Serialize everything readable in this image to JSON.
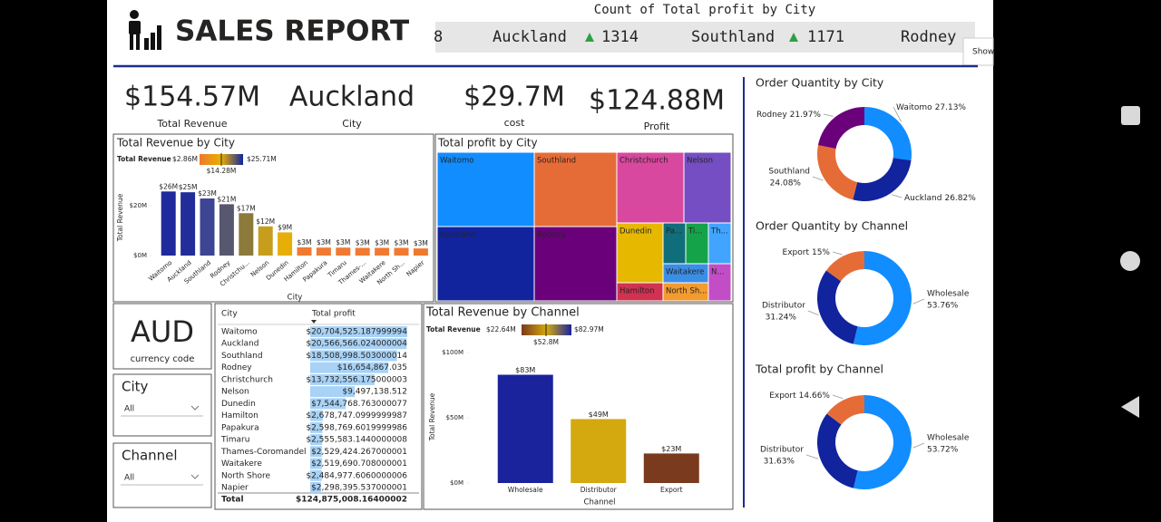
{
  "header": {
    "title": "SALES REPORT",
    "ticker_title": "Count of Total profit by City",
    "ticker_lead": "8",
    "ticker": [
      {
        "city": "Auckland",
        "count": 1314
      },
      {
        "city": "Southland",
        "count": 1171
      },
      {
        "city": "Rodney"
      }
    ],
    "show_button": "Show"
  },
  "kpis": [
    {
      "value": "$154.57M",
      "label": "Total Revenue"
    },
    {
      "value": "Auckland",
      "label": "City"
    },
    {
      "value": "$29.7M",
      "label": "cost"
    },
    {
      "value": "$124.88M",
      "label": "Profit"
    }
  ],
  "slicers": {
    "currency": {
      "value": "AUD",
      "label": "currency code"
    },
    "city": {
      "label": "City",
      "selection": "All"
    },
    "channel": {
      "label": "Channel",
      "selection": "All"
    }
  },
  "table": {
    "columns": [
      "City",
      "Total profit"
    ],
    "rows": [
      [
        "Waitomo",
        "$20,704,525.187999994"
      ],
      [
        "Auckland",
        "$20,566,566.024000004"
      ],
      [
        "Southland",
        "$18,508,998.503000014"
      ],
      [
        "Rodney",
        "$16,654,867.035"
      ],
      [
        "Christchurch",
        "$13,732,556.175000003"
      ],
      [
        "Nelson",
        "$9,497,138.512"
      ],
      [
        "Dunedin",
        "$7,544,768.763000077"
      ],
      [
        "Hamilton",
        "$2,678,747.0999999987"
      ],
      [
        "Papakura",
        "$2,598,769.6019999986"
      ],
      [
        "Timaru",
        "$2,555,583.1440000008"
      ],
      [
        "Thames-Coromandel",
        "$2,529,424.267000001"
      ],
      [
        "Waitakere",
        "$2,519,690.708000001"
      ],
      [
        "North Shore",
        "$2,484,977.6060000006"
      ],
      [
        "Napier",
        "$2,298,395.537000001"
      ]
    ],
    "total": [
      "Total",
      "$124,875,008.16400002"
    ]
  },
  "chart_data": [
    {
      "type": "bar",
      "title": "Total Revenue by City",
      "x_label": "City",
      "y_label": "Total Revenue",
      "categories": [
        "Waitomo",
        "Auckland",
        "Southland",
        "Rodney",
        "Christchu...",
        "Nelson",
        "Dunedin",
        "Hamilton",
        "Papakura",
        "Timaru",
        "Thames-...",
        "Waitakere",
        "North Sh...",
        "Napier"
      ],
      "values": [
        25.71,
        25.4,
        22.9,
        20.6,
        17.0,
        11.7,
        9.3,
        3.3,
        3.2,
        3.2,
        3.1,
        3.1,
        3.1,
        2.86
      ],
      "value_labels": [
        "$26M",
        "$25M",
        "$23M",
        "$21M",
        "$17M",
        "$12M",
        "$9M",
        "$3M",
        "$3M",
        "$3M",
        "$3M",
        "$3M",
        "$3M",
        "$3M"
      ],
      "colors": [
        "#1f2a9c",
        "#222d9a",
        "#3b4592",
        "#585770",
        "#8c7a3a",
        "#c79e1c",
        "#e7ae0a",
        "#f07a32",
        "#f07a32",
        "#f07a32",
        "#f07a32",
        "#f07a32",
        "#f07a32",
        "#f0782d"
      ],
      "ylim": [
        0,
        30
      ],
      "yticks": [
        {
          "value": 0,
          "label": "$0M"
        },
        {
          "value": 20,
          "label": "$20M"
        }
      ],
      "legend": {
        "title": "Total Revenue",
        "min": "$2.86M",
        "mid": "$14.28M",
        "max": "$25.71M",
        "gradient": [
          "#f0782d",
          "#e8b100",
          "#12239e"
        ]
      }
    },
    {
      "type": "treemap",
      "title": "Total profit by City",
      "categories": [
        "Waitomo",
        "Southland",
        "Christchurch",
        "Nelson",
        "Auckland",
        "Rodney",
        "Dunedin",
        "Pa...",
        "Ti...",
        "Th...",
        "Waitakere",
        "N...",
        "Hamilton",
        "North Sh..."
      ],
      "values": [
        20704525.19,
        18508998.5,
        13732556.18,
        9497138.51,
        20566566.02,
        16654867.04,
        7544768.76,
        2598769.6,
        2555583.14,
        2529424.27,
        2519690.71,
        2298395.54,
        2678747.1,
        2484977.61
      ],
      "colors": [
        "#118dff",
        "#e66c37",
        "#d9489f",
        "#744ec2",
        "#12239e",
        "#6b007b",
        "#e6b800",
        "#0f6e7a",
        "#15a34a",
        "#41a4ff",
        "#3a8ee6",
        "#c34dc7",
        "#d13252",
        "#f29b2f"
      ]
    },
    {
      "type": "bar",
      "title": "Total Revenue by Channel",
      "x_label": "Channel",
      "y_label": "Total Revenue",
      "categories": [
        "Wholesale",
        "Distributor",
        "Export"
      ],
      "values": [
        82.97,
        49,
        22.64
      ],
      "value_labels": [
        "$83M",
        "$49M",
        "$23M"
      ],
      "colors": [
        "#1a239c",
        "#d4a90f",
        "#7a3a1e"
      ],
      "ylim": [
        0,
        100
      ],
      "yticks": [
        {
          "value": 0,
          "label": "$0M"
        },
        {
          "value": 50,
          "label": "$50M"
        },
        {
          "value": 100,
          "label": "$100M"
        }
      ],
      "legend": {
        "title": "Total Revenue",
        "min": "$22.64M",
        "mid": "$52.8M",
        "max": "$82.97M",
        "gradient": [
          "#7a3a1e",
          "#d4a90f",
          "#1a239c"
        ]
      }
    },
    {
      "type": "donut",
      "title": "Order Quantity by City",
      "categories": [
        "Waitomo",
        "Auckland",
        "Southland",
        "Rodney"
      ],
      "values": [
        27.13,
        26.82,
        24.08,
        21.97
      ],
      "value_labels": [
        "27.13%",
        "26.82%",
        "24.08%",
        "21.97%"
      ],
      "colors": [
        "#118dff",
        "#12239e",
        "#e66c37",
        "#6b007b"
      ]
    },
    {
      "type": "donut",
      "title": "Order Quantity by Channel",
      "categories": [
        "Wholesale",
        "Distributor",
        "Export"
      ],
      "values": [
        53.76,
        31.24,
        15
      ],
      "value_labels": [
        "53.76%",
        "31.24%",
        "15%"
      ],
      "colors": [
        "#118dff",
        "#12239e",
        "#e66c37"
      ]
    },
    {
      "type": "donut",
      "title": "Total profit by Channel",
      "categories": [
        "Wholesale",
        "Distributor",
        "Export"
      ],
      "values": [
        53.72,
        31.63,
        14.66
      ],
      "value_labels": [
        "53.72%",
        "31.63%",
        "14.66%"
      ],
      "colors": [
        "#118dff",
        "#12239e",
        "#e66c37"
      ]
    }
  ]
}
